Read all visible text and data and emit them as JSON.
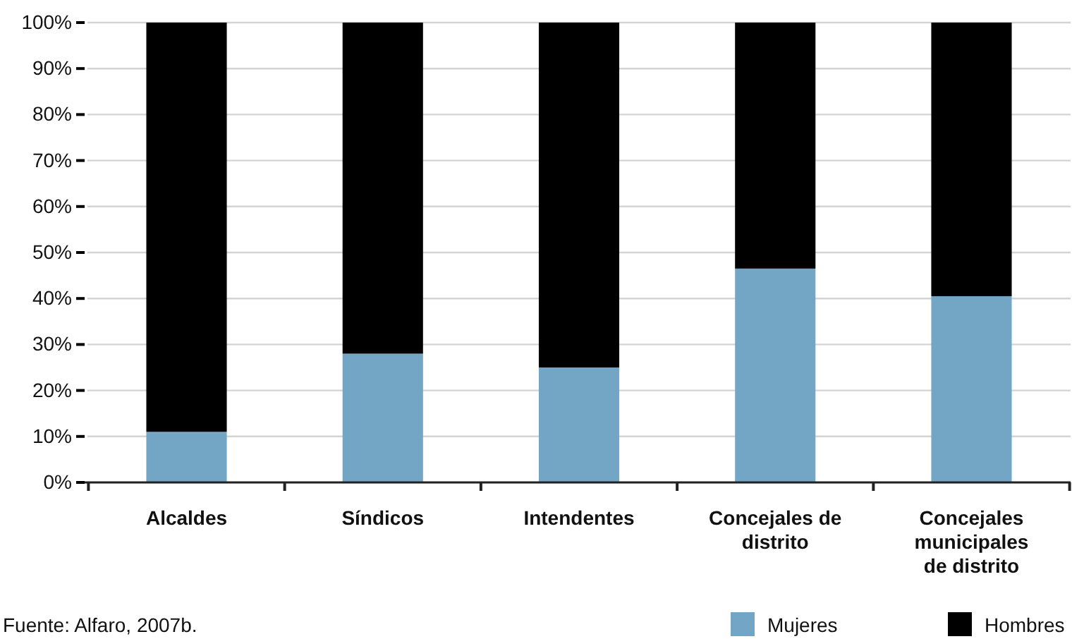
{
  "chart_data": {
    "type": "bar",
    "stacked": true,
    "categories": [
      "Alcaldes",
      "Síndicos",
      "Intendentes",
      "Concejales de distrito",
      "Concejales municipales de distrito"
    ],
    "series": [
      {
        "name": "Mujeres",
        "color": "#72a6c4",
        "values": [
          11,
          28,
          25,
          46.5,
          40.5
        ]
      },
      {
        "name": "Hombres",
        "color": "#000000",
        "values": [
          89,
          72,
          75,
          53.5,
          59.5
        ]
      }
    ],
    "ylim": [
      0,
      100
    ],
    "yticks": [
      {
        "value": 0,
        "label": "0%"
      },
      {
        "value": 10,
        "label": "10%"
      },
      {
        "value": 20,
        "label": "20%"
      },
      {
        "value": 30,
        "label": "30%"
      },
      {
        "value": 40,
        "label": "40%"
      },
      {
        "value": 50,
        "label": "50%"
      },
      {
        "value": 60,
        "label": "60%"
      },
      {
        "value": 70,
        "label": "70%"
      },
      {
        "value": 80,
        "label": "80%"
      },
      {
        "value": 90,
        "label": "90%"
      },
      {
        "value": 100,
        "label": "100%"
      }
    ],
    "grid": "y",
    "legend": "bottom right",
    "annotations": [
      "Fuente: Alfaro, 2007b."
    ]
  }
}
